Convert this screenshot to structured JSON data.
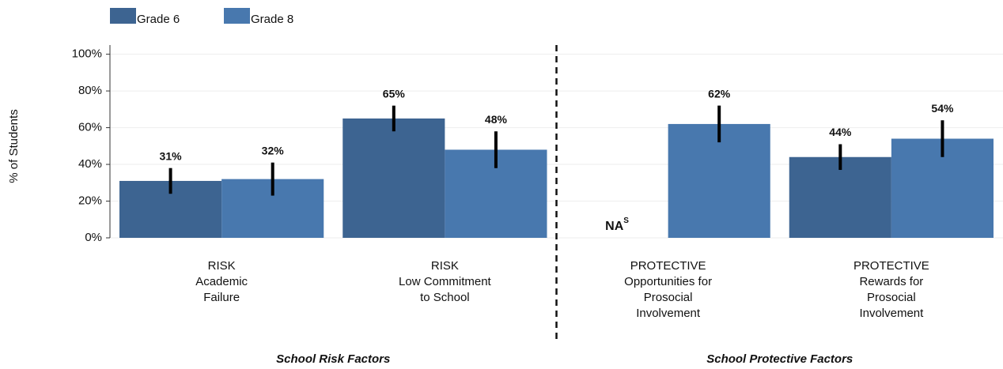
{
  "chart_data": {
    "type": "bar",
    "y_label": "% of Students",
    "categories": [
      [
        "RISK",
        "Academic",
        "Failure"
      ],
      [
        "RISK",
        "Low Commitment",
        "to School"
      ],
      [
        "PROTECTIVE",
        "Opportunities for",
        "Prosocial",
        "Involvement"
      ],
      [
        "PROTECTIVE",
        "Rewards for",
        "Prosocial",
        "Involvement"
      ]
    ],
    "sections": [
      "School Risk Factors",
      "School Protective Factors"
    ],
    "series": [
      {
        "name": "Grade 6",
        "color": "#3d6491",
        "values": [
          31,
          65,
          null,
          44
        ],
        "errors": [
          7,
          7,
          null,
          7
        ],
        "value_labels": [
          "31%",
          "65%",
          "NA",
          "44%"
        ],
        "na_superscript": "S"
      },
      {
        "name": "Grade 8",
        "color": "#4878ae",
        "values": [
          32,
          48,
          62,
          54
        ],
        "errors": [
          9,
          10,
          10,
          10
        ],
        "value_labels": [
          "32%",
          "48%",
          "62%",
          "54%"
        ]
      }
    ],
    "ylim": [
      0,
      105
    ],
    "yticks": [
      {
        "value": 0,
        "label": "0%"
      },
      {
        "value": 20,
        "label": "20%"
      },
      {
        "value": 40,
        "label": "40%"
      },
      {
        "value": 60,
        "label": "60%"
      },
      {
        "value": 80,
        "label": "80%"
      },
      {
        "value": 100,
        "label": "100%"
      }
    ],
    "grid": true
  }
}
